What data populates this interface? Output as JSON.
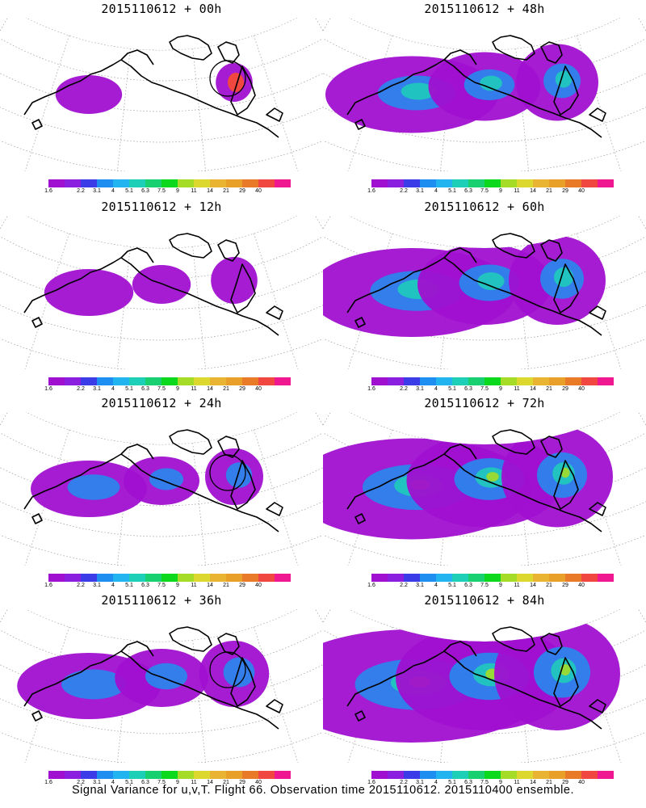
{
  "footer_caption": "Signal Variance for u,v,T. Flight 66. Observation time 2015110612. 2015110400 ensemble.",
  "colorbar": {
    "tick_labels": [
      "1.6",
      "2.2",
      "3.1",
      "4",
      "5.1",
      "6.3",
      "7.5",
      "9",
      "11",
      "14",
      "21",
      "29",
      "40"
    ],
    "colors": [
      "#a010d0",
      "#8a1fe0",
      "#3b3be8",
      "#1e8ff0",
      "#22b4f0",
      "#1ecfb8",
      "#18d070",
      "#0cd81e",
      "#a4dc28",
      "#dcd830",
      "#e8b432",
      "#e8a028",
      "#e87a28",
      "#f04840",
      "#f01890"
    ]
  },
  "panels": [
    {
      "title": "2015110612 + 00h",
      "intensity": 0.08,
      "circle": true,
      "hotspot": true
    },
    {
      "title": "2015110612 + 48h",
      "intensity": 0.55,
      "circle": false,
      "hotspot": false
    },
    {
      "title": "2015110612 + 12h",
      "intensity": 0.18,
      "circle": false,
      "hotspot": false
    },
    {
      "title": "2015110612 + 60h",
      "intensity": 0.7,
      "circle": false,
      "hotspot": false
    },
    {
      "title": "2015110612 + 24h",
      "intensity": 0.3,
      "circle": true,
      "hotspot": false
    },
    {
      "title": "2015110612 + 72h",
      "intensity": 0.85,
      "circle": false,
      "hotspot": false
    },
    {
      "title": "2015110612 + 36h",
      "intensity": 0.42,
      "circle": true,
      "hotspot": false
    },
    {
      "title": "2015110612 + 84h",
      "intensity": 1.0,
      "circle": false,
      "hotspot": false
    }
  ]
}
